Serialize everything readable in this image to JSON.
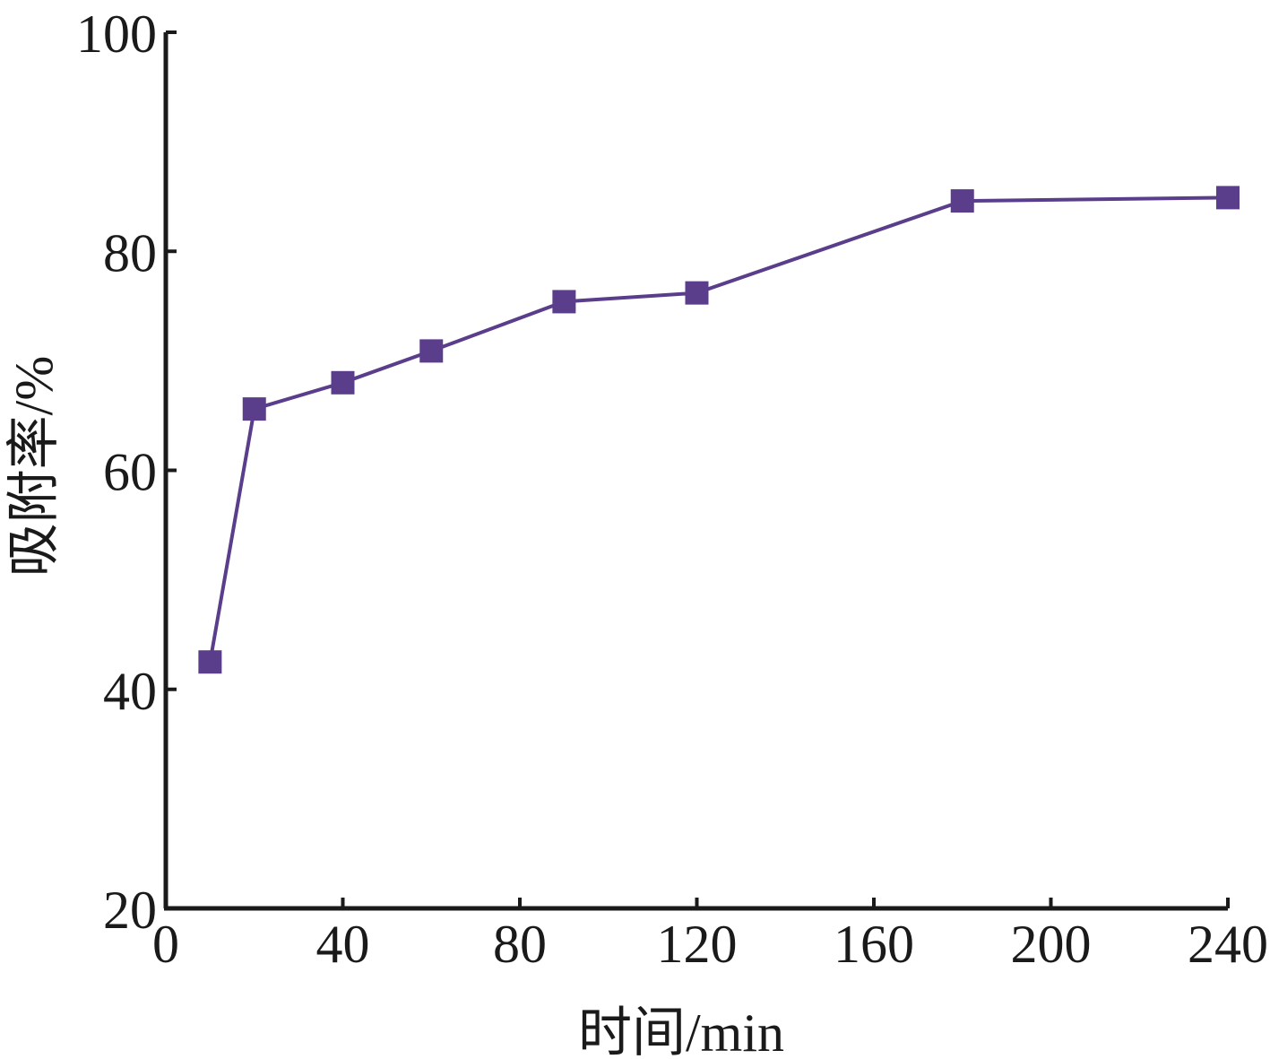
{
  "chart_data": {
    "type": "line",
    "title": "",
    "xlabel": "时间/min",
    "ylabel": "吸附率/%",
    "xlim": [
      0,
      240
    ],
    "ylim": [
      20,
      100
    ],
    "xticks": [
      0,
      40,
      80,
      120,
      160,
      200,
      240
    ],
    "yticks": [
      20,
      40,
      60,
      80,
      100
    ],
    "grid": false,
    "series": [
      {
        "color": "#5a3e8c",
        "marker": "square",
        "x": [
          10,
          20,
          40,
          60,
          90,
          120,
          180,
          240
        ],
        "y": [
          42.5,
          65.6,
          68.0,
          70.9,
          75.4,
          76.2,
          84.6,
          84.9
        ]
      }
    ]
  }
}
